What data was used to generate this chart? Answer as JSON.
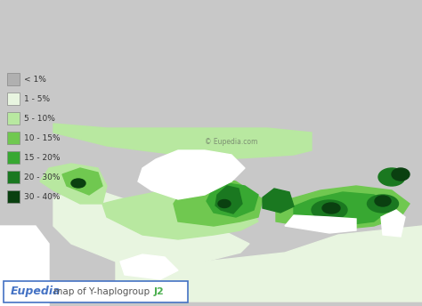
{
  "title": "Eupedia map of Y-haplogroup J2",
  "title_eupedia_color": "#4472c4",
  "title_j2_color": "#4CAF50",
  "title_rest_color": "#555555",
  "background_color": "#ffffff",
  "map_background": "#c8c8c8",
  "legend_labels": [
    "< 1%",
    "1 - 5%",
    "5 - 10%",
    "10 - 15%",
    "15 - 20%",
    "20 - 30%",
    "30 - 40%"
  ],
  "legend_colors": [
    "#b0b0b0",
    "#e8f5e0",
    "#b8e8a0",
    "#70c850",
    "#38a832",
    "#1a7820",
    "#0a4010"
  ],
  "border_color": "#888888",
  "watermark": "© Eupedia.com",
  "figsize": [
    4.74,
    3.44
  ],
  "dpi": 100
}
